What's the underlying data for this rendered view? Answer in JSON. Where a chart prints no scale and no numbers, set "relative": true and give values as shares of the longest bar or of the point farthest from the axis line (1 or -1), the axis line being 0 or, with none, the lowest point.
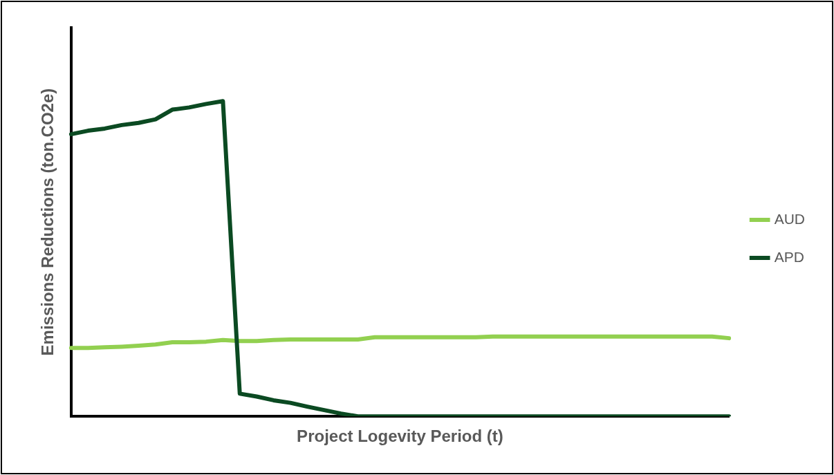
{
  "chart_data": {
    "type": "line",
    "relative": true,
    "xlabel": "Project Logevity Period (t)",
    "ylabel": "Emissions Reductions (ton.CO2e)",
    "categories": [
      null,
      null,
      null,
      null,
      null,
      null,
      null,
      null,
      null,
      null,
      null,
      null,
      null,
      null,
      null,
      null,
      null,
      null,
      null,
      null,
      null,
      null,
      null,
      null,
      null,
      null,
      null,
      null,
      null,
      null,
      null,
      null,
      null,
      null,
      null,
      null,
      null,
      null,
      null,
      null
    ],
    "series": [
      {
        "name": "AUD",
        "color": "#92d050",
        "values": [
          0.217,
          0.217,
          0.219,
          0.221,
          0.224,
          0.228,
          0.235,
          0.235,
          0.237,
          0.242,
          0.239,
          0.239,
          0.242,
          0.244,
          0.244,
          0.244,
          0.244,
          0.244,
          0.251,
          0.251,
          0.251,
          0.251,
          0.251,
          0.251,
          0.251,
          0.253,
          0.253,
          0.253,
          0.253,
          0.253,
          0.253,
          0.253,
          0.253,
          0.253,
          0.253,
          0.253,
          0.253,
          0.253,
          0.253,
          0.248
        ]
      },
      {
        "name": "APD",
        "color": "#0b4a22",
        "values": [
          0.895,
          0.906,
          0.913,
          0.924,
          0.931,
          0.942,
          0.973,
          0.98,
          0.991,
          1,
          0.072,
          0.063,
          0.051,
          0.043,
          0.031,
          0.02,
          0.009,
          0,
          0,
          0,
          0,
          0,
          0,
          0,
          0,
          0,
          0,
          0,
          0,
          0,
          0,
          0,
          0,
          0,
          0,
          0,
          0,
          0,
          0,
          0
        ]
      }
    ],
    "legend": "right",
    "grid": false,
    "marker": "none",
    "line_style": "solid"
  }
}
